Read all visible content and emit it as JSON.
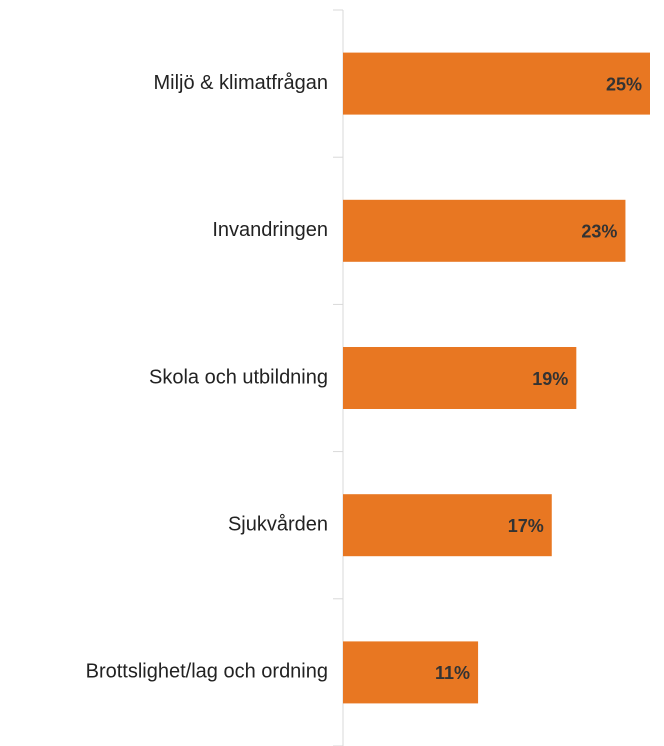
{
  "chart_data": {
    "type": "bar",
    "orientation": "horizontal",
    "categories": [
      "Miljö & klimatfrågan",
      "Invandringen",
      "Skola och utbildning",
      "Sjukvården",
      "Brottslighet/lag och ordning"
    ],
    "values": [
      25,
      23,
      19,
      17,
      11
    ],
    "value_labels": [
      "25%",
      "23%",
      "19%",
      "17%",
      "11%"
    ],
    "color": "#e87722",
    "xlim": [
      0,
      25
    ]
  }
}
